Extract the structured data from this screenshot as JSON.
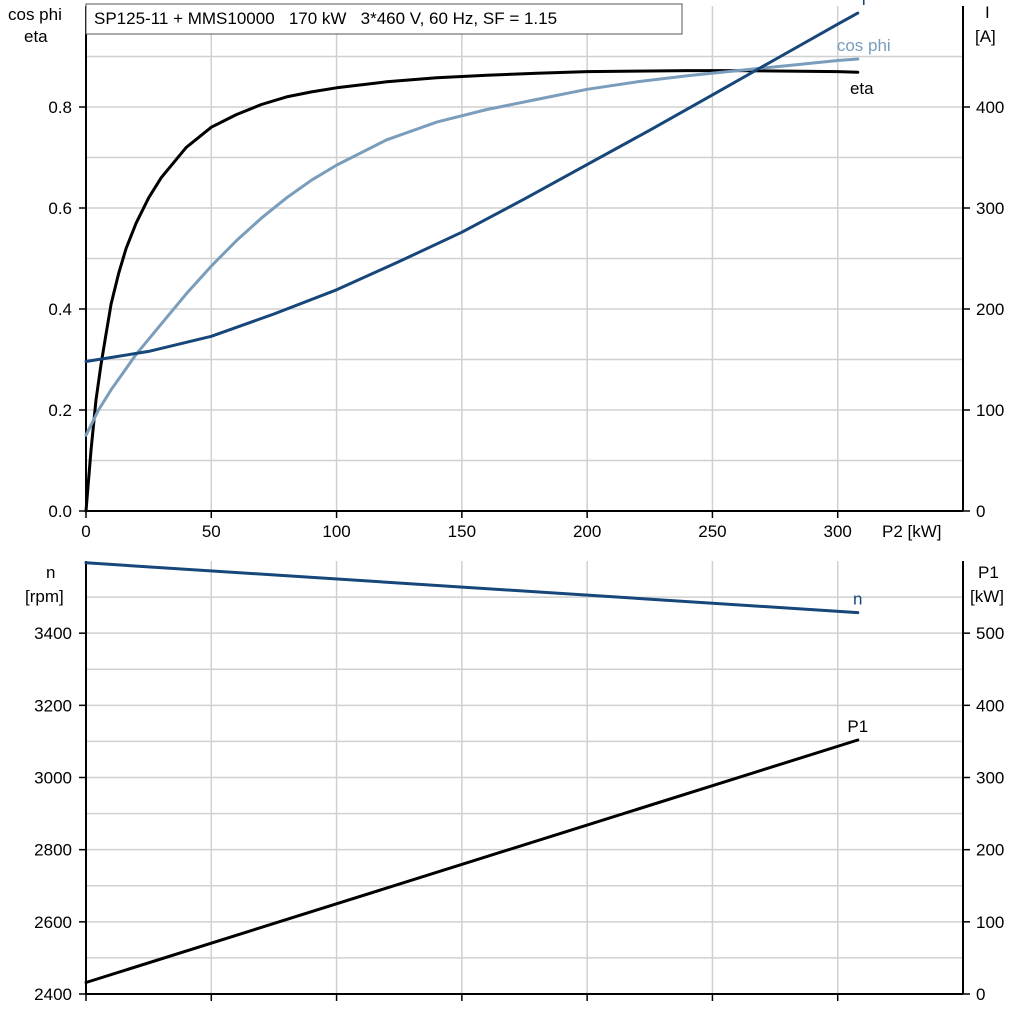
{
  "chart_data": [
    {
      "type": "line",
      "title": "SP125-11 + MMS10000   170 kW   3*460 V, 60 Hz, SF = 1.15",
      "xlabel": "P2 [kW]",
      "ylabel_left": [
        "cos phi",
        "eta"
      ],
      "ylabel_right": [
        "I",
        "[A]"
      ],
      "xlim": [
        0,
        350
      ],
      "ylim_left": [
        0,
        1.0
      ],
      "ylim_right": [
        0,
        500
      ],
      "xticks": [
        "0",
        "50",
        "100",
        "150",
        "200",
        "250",
        "300"
      ],
      "yticks_left": [
        "0.0",
        "0.2",
        "0.4",
        "0.6",
        "0.8"
      ],
      "yticks_right": [
        "0",
        "100",
        "200",
        "300",
        "400"
      ],
      "grid": true,
      "series": [
        {
          "name": "eta",
          "axis": "left",
          "color": "#000000",
          "x": [
            0,
            2,
            4,
            6,
            8,
            10,
            13,
            16,
            20,
            25,
            30,
            35,
            40,
            45,
            50,
            60,
            70,
            80,
            90,
            100,
            120,
            140,
            160,
            180,
            200,
            220,
            240,
            260,
            280,
            300,
            308
          ],
          "y": [
            0.0,
            0.12,
            0.22,
            0.29,
            0.35,
            0.41,
            0.47,
            0.52,
            0.57,
            0.62,
            0.66,
            0.69,
            0.72,
            0.74,
            0.76,
            0.785,
            0.805,
            0.82,
            0.83,
            0.838,
            0.85,
            0.858,
            0.863,
            0.867,
            0.87,
            0.871,
            0.872,
            0.872,
            0.871,
            0.87,
            0.869
          ]
        },
        {
          "name": "cos phi",
          "axis": "left",
          "color": "#7a9dbb",
          "x": [
            0,
            5,
            10,
            20,
            30,
            40,
            50,
            60,
            70,
            80,
            90,
            100,
            120,
            140,
            160,
            180,
            200,
            220,
            240,
            260,
            280,
            300,
            308
          ],
          "y": [
            0.15,
            0.2,
            0.24,
            0.31,
            0.37,
            0.43,
            0.485,
            0.535,
            0.58,
            0.62,
            0.655,
            0.685,
            0.735,
            0.77,
            0.795,
            0.815,
            0.835,
            0.85,
            0.862,
            0.872,
            0.882,
            0.892,
            0.895
          ]
        },
        {
          "name": "I",
          "axis": "right",
          "color": "#16467a",
          "x": [
            0,
            25,
            50,
            75,
            100,
            125,
            150,
            175,
            200,
            225,
            250,
            275,
            300,
            308
          ],
          "y": [
            148,
            158,
            173,
            195,
            219,
            247,
            276,
            309,
            343,
            377,
            412,
            447,
            482,
            493
          ]
        }
      ]
    },
    {
      "type": "line",
      "xlabel": "",
      "ylabel_left": [
        "n",
        "[rpm]"
      ],
      "ylabel_right": [
        "P1",
        "[kW]"
      ],
      "xlim": [
        0,
        350
      ],
      "ylim_left": [
        2400,
        3600
      ],
      "ylim_right": [
        0,
        600
      ],
      "yticks_left": [
        "2400",
        "2600",
        "2800",
        "3000",
        "3200",
        "3400"
      ],
      "yticks_right": [
        "0",
        "100",
        "200",
        "300",
        "400",
        "500"
      ],
      "grid": true,
      "series": [
        {
          "name": "n",
          "axis": "left",
          "color": "#16467a",
          "x": [
            0,
            308
          ],
          "y": [
            3595,
            3457
          ]
        },
        {
          "name": "P1",
          "axis": "right",
          "color": "#000000",
          "x": [
            0,
            308
          ],
          "y": [
            16,
            352
          ]
        }
      ]
    }
  ]
}
